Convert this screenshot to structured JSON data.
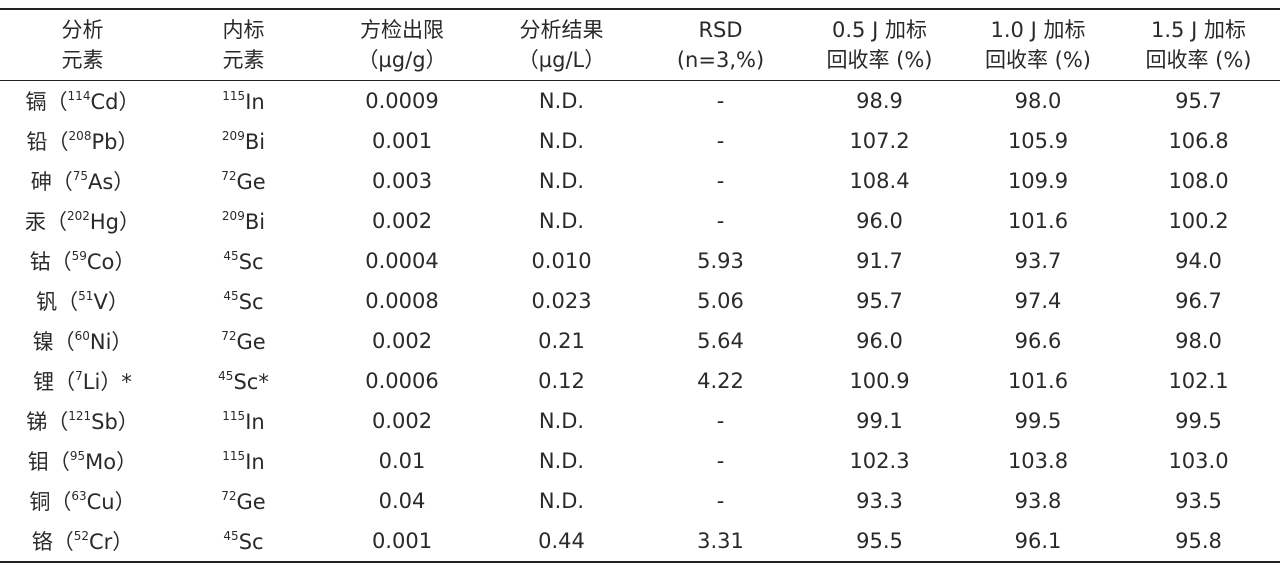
{
  "table": {
    "header": [
      [
        "分析",
        "元素"
      ],
      [
        "内标",
        "元素"
      ],
      [
        "方检出限",
        "（µg/g）"
      ],
      [
        "分析结果",
        "（µg/L）"
      ],
      [
        "RSD",
        "(n=3,%)"
      ],
      [
        "0.5 J 加标",
        "回收率 (%)"
      ],
      [
        "1.0 J 加标",
        "回收率 (%)"
      ],
      [
        "1.5 J 加标",
        "回收率 (%)"
      ]
    ],
    "rows": [
      {
        "element": {
          "name": "镉（",
          "mass": "114",
          "symbol": "Cd）"
        },
        "internal": {
          "mass": "115",
          "symbol": "In"
        },
        "cells": [
          "0.0009",
          "N.D.",
          "-",
          "98.9",
          "98.0",
          "95.7"
        ]
      },
      {
        "element": {
          "name": "铅（",
          "mass": "208",
          "symbol": "Pb）"
        },
        "internal": {
          "mass": "209",
          "symbol": "Bi"
        },
        "cells": [
          "0.001",
          "N.D.",
          "-",
          "107.2",
          "105.9",
          "106.8"
        ]
      },
      {
        "element": {
          "name": "砷（",
          "mass": "75",
          "symbol": "As）"
        },
        "internal": {
          "mass": "72",
          "symbol": "Ge"
        },
        "cells": [
          "0.003",
          "N.D.",
          "-",
          "108.4",
          "109.9",
          "108.0"
        ]
      },
      {
        "element": {
          "name": "汞（",
          "mass": "202",
          "symbol": "Hg）"
        },
        "internal": {
          "mass": "209",
          "symbol": "Bi"
        },
        "cells": [
          "0.002",
          "N.D.",
          "-",
          "96.0",
          "101.6",
          "100.2"
        ]
      },
      {
        "element": {
          "name": "钴（",
          "mass": "59",
          "symbol": "Co）"
        },
        "internal": {
          "mass": "45",
          "symbol": "Sc"
        },
        "cells": [
          "0.0004",
          "0.010",
          "5.93",
          "91.7",
          "93.7",
          "94.0"
        ]
      },
      {
        "element": {
          "name": "钒（",
          "mass": "51",
          "symbol": "V）"
        },
        "internal": {
          "mass": "45",
          "symbol": "Sc"
        },
        "cells": [
          "0.0008",
          "0.023",
          "5.06",
          "95.7",
          "97.4",
          "96.7"
        ]
      },
      {
        "element": {
          "name": "镍（",
          "mass": "60",
          "symbol": "Ni）"
        },
        "internal": {
          "mass": "72",
          "symbol": "Ge"
        },
        "cells": [
          "0.002",
          "0.21",
          "5.64",
          "96.0",
          "96.6",
          "98.0"
        ]
      },
      {
        "element": {
          "name": "锂（",
          "mass": "7",
          "symbol": "Li）*"
        },
        "internal": {
          "mass": "45",
          "symbol": "Sc*"
        },
        "cells": [
          "0.0006",
          "0.12",
          "4.22",
          "100.9",
          "101.6",
          "102.1"
        ]
      },
      {
        "element": {
          "name": "锑（",
          "mass": "121",
          "symbol": "Sb）"
        },
        "internal": {
          "mass": "115",
          "symbol": "In"
        },
        "cells": [
          "0.002",
          "N.D.",
          "-",
          "99.1",
          "99.5",
          "99.5"
        ]
      },
      {
        "element": {
          "name": "钼（",
          "mass": "95",
          "symbol": "Mo）"
        },
        "internal": {
          "mass": "115",
          "symbol": "In"
        },
        "cells": [
          "0.01",
          "N.D.",
          "-",
          "102.3",
          "103.8",
          "103.0"
        ]
      },
      {
        "element": {
          "name": "铜（",
          "mass": "63",
          "symbol": "Cu）"
        },
        "internal": {
          "mass": "72",
          "symbol": "Ge"
        },
        "cells": [
          "0.04",
          "N.D.",
          "-",
          "93.3",
          "93.8",
          "93.5"
        ]
      },
      {
        "element": {
          "name": "铬（",
          "mass": "52",
          "symbol": "Cr）"
        },
        "internal": {
          "mass": "45",
          "symbol": "Sc"
        },
        "cells": [
          "0.001",
          "0.44",
          "3.31",
          "95.5",
          "96.1",
          "95.8"
        ]
      }
    ]
  }
}
